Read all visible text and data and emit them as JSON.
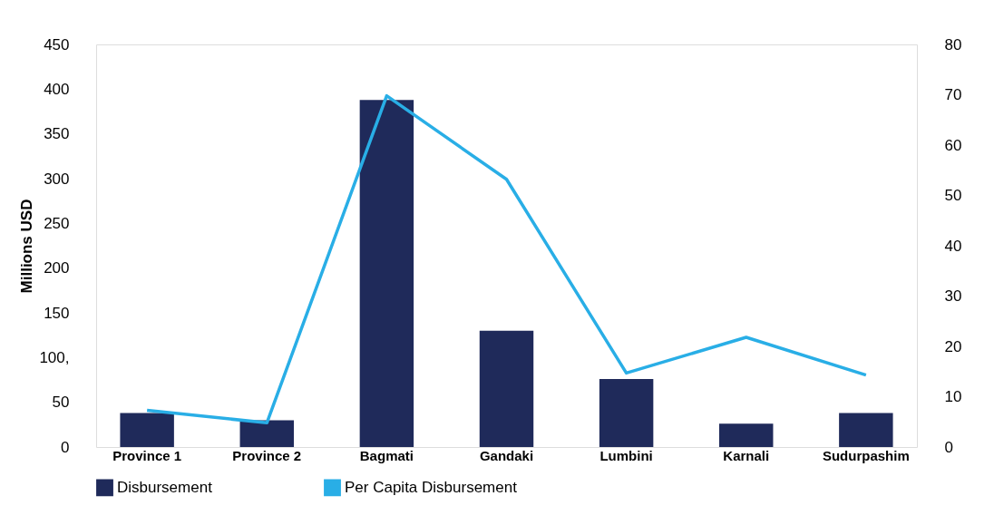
{
  "chart_data": {
    "type": "bar",
    "ylabel": "Millions USD",
    "categories": [
      "Province 1",
      "Province 2",
      "Bagmati",
      "Gandaki",
      "Lumbini",
      "Karnali",
      "Sudurpashim"
    ],
    "series": [
      {
        "name": "Disbursement",
        "color": "#1f2a5a",
        "values": [
          38,
          30,
          388,
          130,
          76,
          26,
          38
        ]
      },
      {
        "name": "Per Capita Disbursement",
        "type": "line",
        "axis": "y2",
        "color": "#29aee6",
        "values": [
          7.3,
          4.8,
          69.8,
          53.2,
          14.7,
          21.8,
          14.3
        ]
      }
    ],
    "ylim": [
      0,
      450
    ],
    "yticks": [
      0,
      50,
      {
        "value": 100,
        "label": "100,"
      },
      150,
      200,
      250,
      300,
      350,
      400,
      450
    ],
    "y2lim": [
      0,
      80
    ],
    "y2ticks": [
      0,
      10,
      20,
      30,
      40,
      50,
      60,
      70,
      80
    ],
    "grid": false,
    "legend": "bottom",
    "marker": "none",
    "line_style": "solid"
  }
}
